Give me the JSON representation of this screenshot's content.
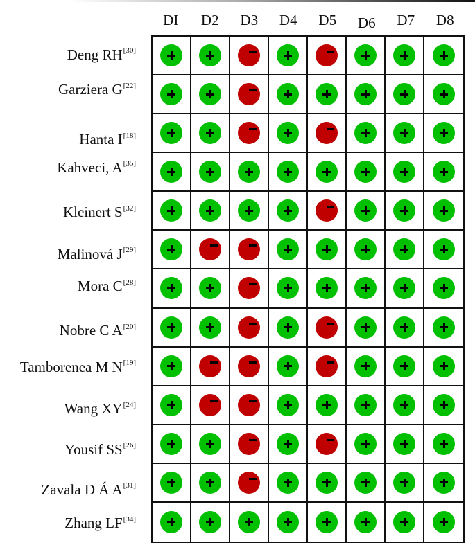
{
  "columns": [
    "DI",
    "D2",
    "D3",
    "D4",
    "D5",
    "D6",
    "D7",
    "D8"
  ],
  "legend": {
    "low_risk": "+",
    "high_risk": "−",
    "low_color": "#00c000",
    "high_color": "#c00000"
  },
  "studies": [
    {
      "name": "Deng  RH",
      "ref": "[30]",
      "ratings": [
        "+",
        "+",
        "-",
        "+",
        "-",
        "+",
        "+",
        "+"
      ]
    },
    {
      "name": "Garziera  G",
      "ref": "[22]",
      "ratings": [
        "+",
        "+",
        "-",
        "+",
        "+",
        "+",
        "+",
        "+"
      ]
    },
    {
      "name": "Hanta I",
      "ref": "[18]",
      "ratings": [
        "+",
        "+",
        "-",
        "+",
        "-",
        "+",
        "+",
        "+"
      ]
    },
    {
      "name": "Kahveci, A",
      "ref": "[35]",
      "ratings": [
        "+",
        "+",
        "+",
        "+",
        "+",
        "+",
        "+",
        "+"
      ]
    },
    {
      "name": "Kleinert  S",
      "ref": "[32]",
      "ratings": [
        "+",
        "+",
        "+",
        "+",
        "-",
        "+",
        "+",
        "+"
      ]
    },
    {
      "name": "Malinová J",
      "ref": "[29]",
      "ratings": [
        "+",
        "-",
        "-",
        "+",
        "+",
        "+",
        "+",
        "+"
      ]
    },
    {
      "name": "Mora  C",
      "ref": "[28]",
      "ratings": [
        "+",
        "+",
        "-",
        "+",
        "+",
        "+",
        "+",
        "+"
      ]
    },
    {
      "name": "Nobre C A",
      "ref": "[20]",
      "ratings": [
        "+",
        "+",
        "-",
        "+",
        "-",
        "+",
        "+",
        "+"
      ]
    },
    {
      "name": "Tamborenea M N",
      "ref": "[19]",
      "ratings": [
        "+",
        "-",
        "-",
        "+",
        "-",
        "+",
        "+",
        "+"
      ]
    },
    {
      "name": "Wang  XY",
      "ref": "[24]",
      "ratings": [
        "+",
        "-",
        "-",
        "+",
        "+",
        "+",
        "+",
        "+"
      ]
    },
    {
      "name": "Yousif SS",
      "ref": "[26]",
      "ratings": [
        "+",
        "+",
        "-",
        "+",
        "-",
        "+",
        "+",
        "+"
      ]
    },
    {
      "name": "Zavala D Á A",
      "ref": "[31]",
      "ratings": [
        "+",
        "+",
        "-",
        "+",
        "+",
        "+",
        "+",
        "+"
      ]
    },
    {
      "name": "Zhang  LF",
      "ref": "[34]",
      "ratings": [
        "+",
        "+",
        "+",
        "+",
        "+",
        "+",
        "+",
        "+"
      ]
    }
  ]
}
